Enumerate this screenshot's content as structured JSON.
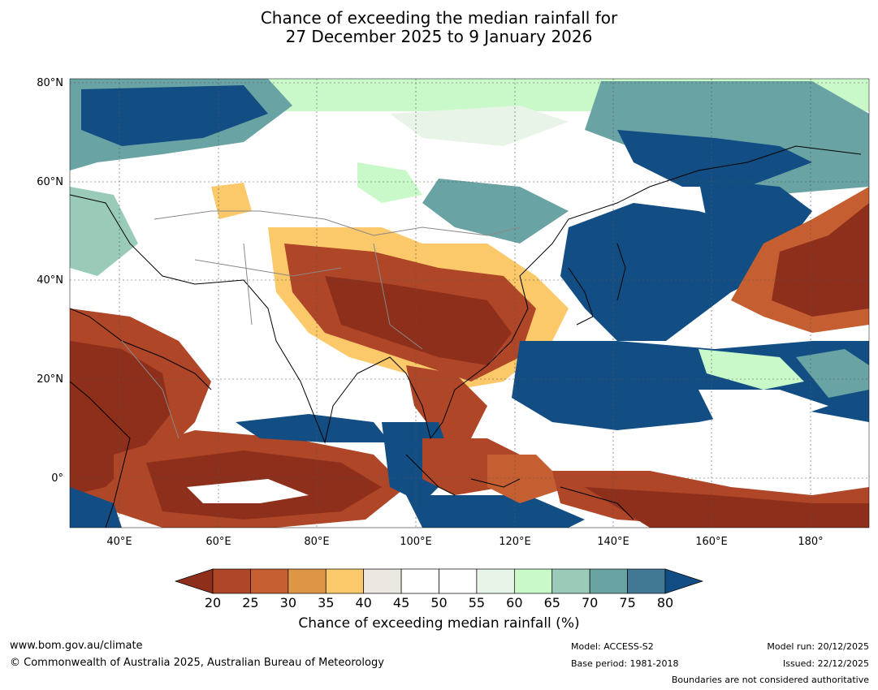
{
  "title_line1": "Chance of exceeding the median rainfall for",
  "title_line2": "27 December 2025 to 9 January 2026",
  "lat_labels": [
    "80°N",
    "60°N",
    "40°N",
    "20°N",
    "0°"
  ],
  "lon_labels": [
    "40°E",
    "60°E",
    "80°E",
    "100°E",
    "120°E",
    "140°E",
    "160°E",
    "180°"
  ],
  "colorbar": {
    "title": "Chance of exceeding median rainfall (%)",
    "ticks": [
      "20",
      "25",
      "30",
      "35",
      "40",
      "45",
      "50",
      "55",
      "60",
      "65",
      "70",
      "75",
      "80"
    ],
    "colors": [
      "#8e2f1c",
      "#ae4627",
      "#c55f32",
      "#df9546",
      "#fbc86a",
      "#ebe8e2",
      "#ffffff",
      "#ffffff",
      "#e9f4e8",
      "#c9f9c9",
      "#99cbb8",
      "#6aa3a4",
      "#417994",
      "#124e84"
    ]
  },
  "footer": {
    "url": "www.bom.gov.au/climate",
    "copyright": "© Commonwealth of Australia 2025, Australian Bureau of Meteorology",
    "model": "Model: ACCESS-S2",
    "base_period": "Base period: 1981-2018",
    "model_run": "Model run: 20/12/2025",
    "issued": "Issued: 22/12/2025",
    "disclaimer": "Boundaries are not considered authoritative"
  }
}
